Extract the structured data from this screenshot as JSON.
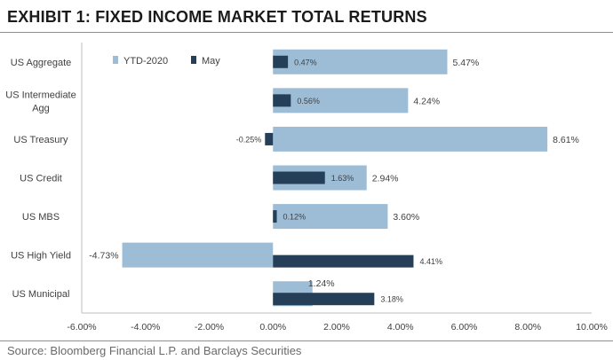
{
  "exhibit": {
    "title": "EXHIBIT 1: FIXED INCOME MARKET TOTAL RETURNS",
    "source": "Source: Bloomberg Financial L.P. and Barclays Securities"
  },
  "colors": {
    "ytd": "#9dbdd7",
    "may": "#243f57",
    "axis": "#bfbfbf",
    "text": "#404040"
  },
  "chart_data": {
    "type": "bar",
    "orientation": "horizontal",
    "categories": [
      "US Aggregate",
      "US Intermediate Agg",
      "US Treasury",
      "US Credit",
      "US MBS",
      "US High Yield",
      "US Municipal"
    ],
    "category_labels": [
      [
        "US Aggregate"
      ],
      [
        "US Intermediate",
        "Agg"
      ],
      [
        "US Treasury"
      ],
      [
        "US Credit"
      ],
      [
        "US MBS"
      ],
      [
        "US High Yield"
      ],
      [
        "US Municipal"
      ]
    ],
    "series": [
      {
        "name": "YTD-2020",
        "values": [
          5.47,
          4.24,
          8.61,
          2.94,
          3.6,
          -4.73,
          1.24
        ],
        "labels": [
          "5.47%",
          "4.24%",
          "8.61%",
          "2.94%",
          "3.60%",
          "-4.73%",
          "1.24%"
        ]
      },
      {
        "name": "May",
        "values": [
          0.47,
          0.56,
          -0.25,
          1.63,
          0.12,
          4.41,
          3.18
        ],
        "labels": [
          "0.47%",
          "0.56%",
          "-0.25%",
          "1.63%",
          "0.12%",
          "4.41%",
          "3.18%"
        ]
      }
    ],
    "xlim": [
      -6,
      10
    ],
    "xticks": [
      -6,
      -4,
      -2,
      0,
      2,
      4,
      6,
      8,
      10
    ],
    "xtick_labels": [
      "-6.00%",
      "-4.00%",
      "-2.00%",
      "0.00%",
      "2.00%",
      "4.00%",
      "6.00%",
      "8.00%",
      "10.00%"
    ],
    "legend_position": "top-left",
    "grid": false
  }
}
